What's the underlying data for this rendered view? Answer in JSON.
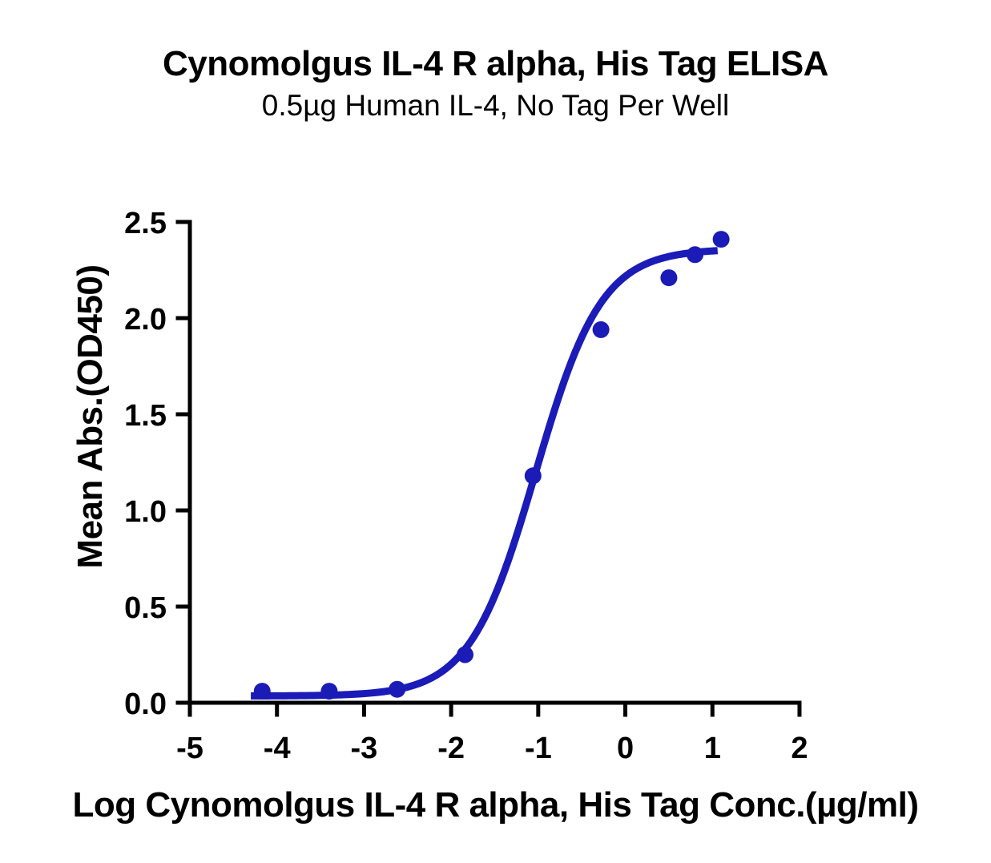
{
  "chart_data": {
    "type": "scatter",
    "title": "Cynomolgus IL-4 R alpha, His Tag ELISA",
    "subtitle": "0.5µg Human IL-4, No Tag Per Well",
    "xlabel": "Log Cynomolgus IL-4 R alpha, His Tag Conc.(µg/ml)",
    "ylabel": "Mean Abs.(OD450)",
    "xlim": [
      -5,
      2
    ],
    "ylim": [
      0.0,
      2.5
    ],
    "grid": false,
    "legend": false,
    "x_ticks": [
      -5,
      -4,
      -3,
      -2,
      -1,
      0,
      1,
      2
    ],
    "x_tick_labels": [
      "-5",
      "-4",
      "-3",
      "-2",
      "-1",
      "0",
      "1",
      "2"
    ],
    "y_ticks": [
      0.0,
      0.5,
      1.0,
      1.5,
      2.0,
      2.5
    ],
    "y_tick_labels": [
      "0.0",
      "0.5",
      "1.0",
      "1.5",
      "2.0",
      "2.5"
    ],
    "series": [
      {
        "marker": "circle",
        "points": [
          {
            "x": -4.17,
            "y": 0.06
          },
          {
            "x": -3.4,
            "y": 0.06
          },
          {
            "x": -2.62,
            "y": 0.07
          },
          {
            "x": -1.84,
            "y": 0.25
          },
          {
            "x": -1.06,
            "y": 1.18
          },
          {
            "x": -0.28,
            "y": 1.94
          },
          {
            "x": 0.5,
            "y": 2.21
          },
          {
            "x": 0.8,
            "y": 2.33
          },
          {
            "x": 1.1,
            "y": 2.41
          }
        ],
        "fit_curve": {
          "model": "four_parameter_logistic",
          "bottom": 0.035,
          "top": 2.36,
          "log_ec50": -1.03,
          "hill_slope": 1.15,
          "x_start": -4.3,
          "x_end": 1.08
        }
      }
    ]
  },
  "colors": {
    "series_blue": "#1b1bb8",
    "axis_black": "#000000",
    "background": "#ffffff"
  }
}
